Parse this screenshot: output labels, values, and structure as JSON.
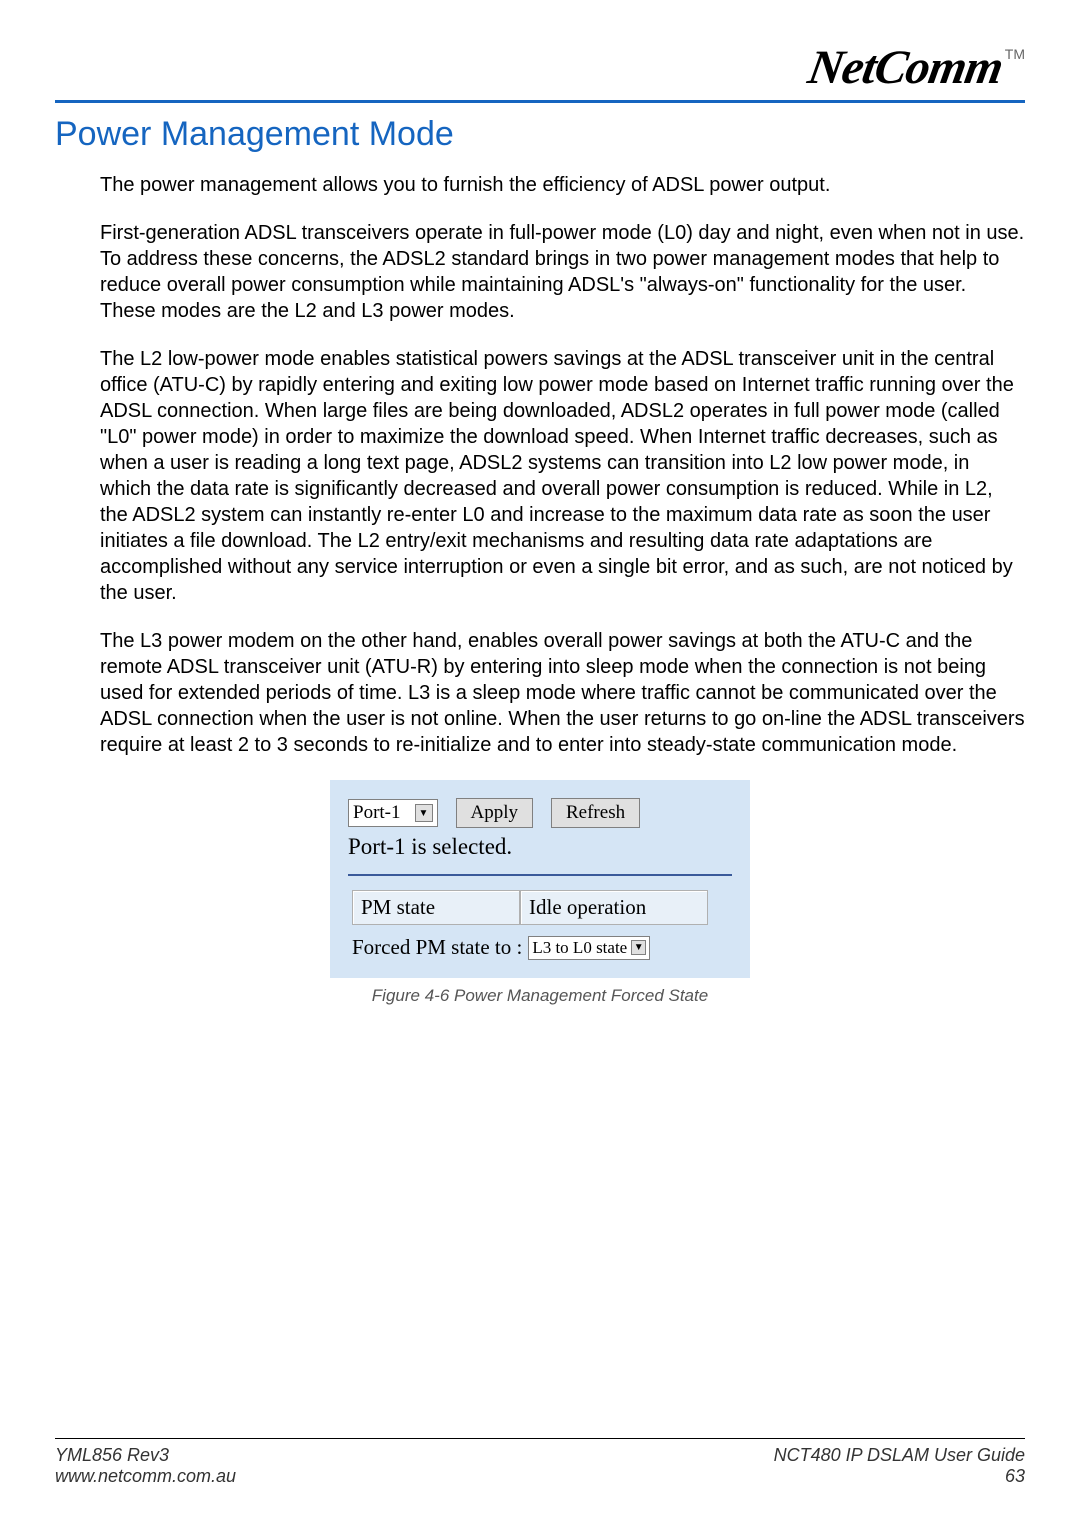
{
  "logo": {
    "text": "NetComm",
    "trademark": "TM"
  },
  "section_title": "Power Management Mode",
  "paragraphs": {
    "p1": "The power management allows you to furnish the efficiency of ADSL power output.",
    "p2": "First-generation ADSL transceivers operate in full-power mode (L0) day and night, even when not in use. To address these concerns, the ADSL2 standard brings in two power management modes that help to reduce overall power consumption while maintaining ADSL's \"always-on\" functionality for the user. These modes are the L2 and L3 power modes.",
    "p3": "The L2 low-power mode enables statistical powers savings at the ADSL transceiver unit in the central office (ATU-C) by rapidly entering and exiting low power mode based on Internet traffic running over the ADSL connection. When large files are being downloaded, ADSL2 operates in full power mode (called \"L0\" power mode) in order to maximize the download speed. When Internet traffic decreases, such as when a user is reading a long text page, ADSL2 systems can transition into L2 low power mode, in which the data rate is significantly decreased and overall power consumption is reduced. While in L2, the ADSL2 system can instantly re-enter L0 and increase to the maximum data rate as soon the user initiates a file download. The L2 entry/exit mechanisms and resulting data rate adaptations are accomplished without any service interruption or even a single bit error, and as such, are not noticed by the user.",
    "p4": " The L3 power modem on the other hand, enables overall power savings at both the ATU-C and the remote ADSL transceiver unit (ATU-R) by entering into sleep mode when the connection is not being used for extended periods of time. L3 is a sleep mode where traffic cannot be communicated over the ADSL connection when the user is not online. When the user returns to go on-line the ADSL transceivers require at least 2 to 3 seconds to re-initialize and to enter into steady-state communication mode."
  },
  "screenshot": {
    "port_select": "Port-1",
    "apply_label": "Apply",
    "refresh_label": "Refresh",
    "selected_text": "Port-1 is selected.",
    "pm_state_label": "PM state",
    "pm_state_value": "Idle operation",
    "forced_label": "Forced PM state to :",
    "forced_value": "L3 to L0 state",
    "background_color": "#d5e5f5",
    "cell_background": "#e8f0f8",
    "hr_color": "#3a5a9a"
  },
  "figure_caption": "Figure 4-6 Power Management Forced State",
  "footer": {
    "rev": "YML856 Rev3",
    "url": "www.netcomm.com.au",
    "guide": "NCT480 IP DSLAM User Guide",
    "page": "63"
  },
  "colors": {
    "title_blue": "#1565c0",
    "text_black": "#000000",
    "caption_gray": "#555555"
  }
}
